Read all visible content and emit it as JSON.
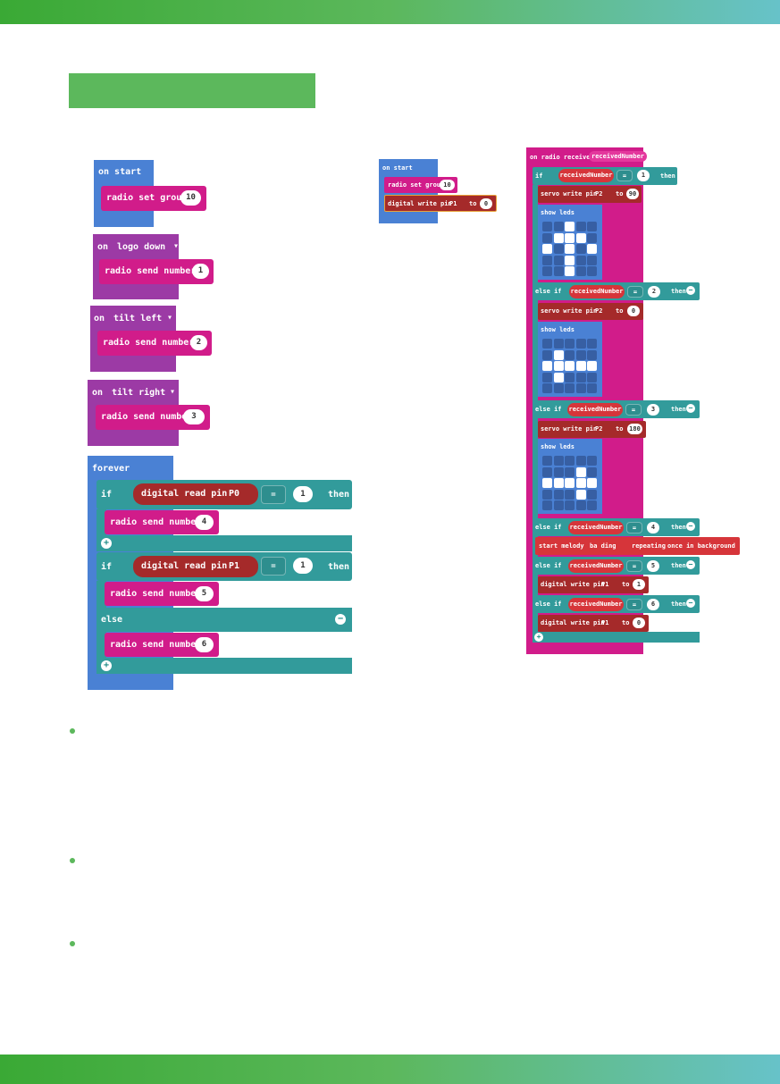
{
  "colors": {
    "basic": "#4a81d4",
    "input": "#9c3aa5",
    "radio": "#d11c8a",
    "logic": "#329b9b",
    "pins": "#a52a2a",
    "music": "#d6353a",
    "accent": "#5cb85c"
  },
  "left": {
    "on_start": {
      "label": "on start",
      "radio_set_group": "radio set group",
      "group_value": "10"
    },
    "logo_down": {
      "on": "on",
      "event": "logo down",
      "send": "radio send number",
      "value": "1"
    },
    "tilt_left": {
      "on": "on",
      "event": "tilt left",
      "send": "radio send number",
      "value": "2"
    },
    "tilt_right": {
      "on": "on",
      "event": "tilt right",
      "send": "radio send number",
      "value": "3"
    },
    "forever": {
      "label": "forever",
      "if1": {
        "if": "if",
        "read": "digital read pin",
        "pin": "P0",
        "op": "=",
        "value": "1",
        "then": "then",
        "send": "radio send number",
        "send_value": "4"
      },
      "if2": {
        "if": "if",
        "read": "digital read pin",
        "pin": "P1",
        "op": "=",
        "value": "1",
        "then": "then",
        "send": "radio send number",
        "send_value": "5"
      },
      "else": {
        "label": "else",
        "send": "radio send number",
        "send_value": "6"
      }
    }
  },
  "middle": {
    "on_start": "on start",
    "radio_set_group": "radio set group",
    "group_value": "10",
    "digital_write": "digital write pin",
    "pin": "P1",
    "to": "to",
    "value": "0"
  },
  "right": {
    "header": "on radio received",
    "var": "receivedNumber",
    "cond1": {
      "kw": "if",
      "var": "receivedNumber",
      "op": "=",
      "value": "1",
      "then": "then"
    },
    "servo1": {
      "label": "servo write pin",
      "pin": "P2",
      "to": "to",
      "value": "90"
    },
    "show_leds": "show leds",
    "cond2": {
      "kw": "else if",
      "var": "receivedNumber",
      "op": "=",
      "value": "2",
      "then": "then"
    },
    "servo2": {
      "label": "servo write pin",
      "pin": "P2",
      "to": "to",
      "value": "0"
    },
    "cond3": {
      "kw": "else if",
      "var": "receivedNumber",
      "op": "=",
      "value": "3",
      "then": "then"
    },
    "servo3": {
      "label": "servo write pin",
      "pin": "P2",
      "to": "to",
      "value": "180"
    },
    "cond4": {
      "kw": "else if",
      "var": "receivedNumber",
      "op": "=",
      "value": "4",
      "then": "then"
    },
    "melody": {
      "label": "start melody",
      "tune": "ba ding",
      "repeat": "repeating",
      "mode": "once in background"
    },
    "cond5": {
      "kw": "else if",
      "var": "receivedNumber",
      "op": "=",
      "value": "5",
      "then": "then"
    },
    "write5": {
      "label": "digital write pin",
      "pin": "P1",
      "to": "to",
      "value": "1"
    },
    "cond6": {
      "kw": "else if",
      "var": "receivedNumber",
      "op": "=",
      "value": "6",
      "then": "then"
    },
    "write6": {
      "label": "digital write pin",
      "pin": "P1",
      "to": "to",
      "value": "0"
    },
    "leds1": [
      [
        0,
        0,
        1,
        0,
        0
      ],
      [
        0,
        1,
        1,
        1,
        0
      ],
      [
        1,
        0,
        1,
        0,
        1
      ],
      [
        0,
        0,
        1,
        0,
        0
      ],
      [
        0,
        0,
        1,
        0,
        0
      ]
    ],
    "leds2": [
      [
        0,
        0,
        0,
        0,
        0
      ],
      [
        0,
        1,
        0,
        0,
        0
      ],
      [
        1,
        1,
        1,
        1,
        1
      ],
      [
        0,
        1,
        0,
        0,
        0
      ],
      [
        0,
        0,
        0,
        0,
        0
      ]
    ],
    "leds3": [
      [
        0,
        0,
        0,
        0,
        0
      ],
      [
        0,
        0,
        0,
        1,
        0
      ],
      [
        1,
        1,
        1,
        1,
        1
      ],
      [
        0,
        0,
        0,
        1,
        0
      ],
      [
        0,
        0,
        0,
        0,
        0
      ]
    ]
  }
}
